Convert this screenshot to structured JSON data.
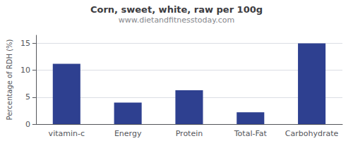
{
  "chart_data": {
    "type": "bar",
    "title": "Corn, sweet, white, raw per 100g",
    "subtitle": "www.dietandfitnesstoday.com",
    "categories": [
      "vitamin-c",
      "Energy",
      "Protein",
      "Total-Fat",
      "Carbohydrate"
    ],
    "values": [
      11.2,
      4.0,
      6.3,
      2.2,
      15.0
    ],
    "color": "#2e4090",
    "ylabel": "Percentage of RDH (%)",
    "ylim": [
      0,
      16.5
    ],
    "yticks": [
      0,
      5,
      10,
      15
    ],
    "grid": true
  }
}
